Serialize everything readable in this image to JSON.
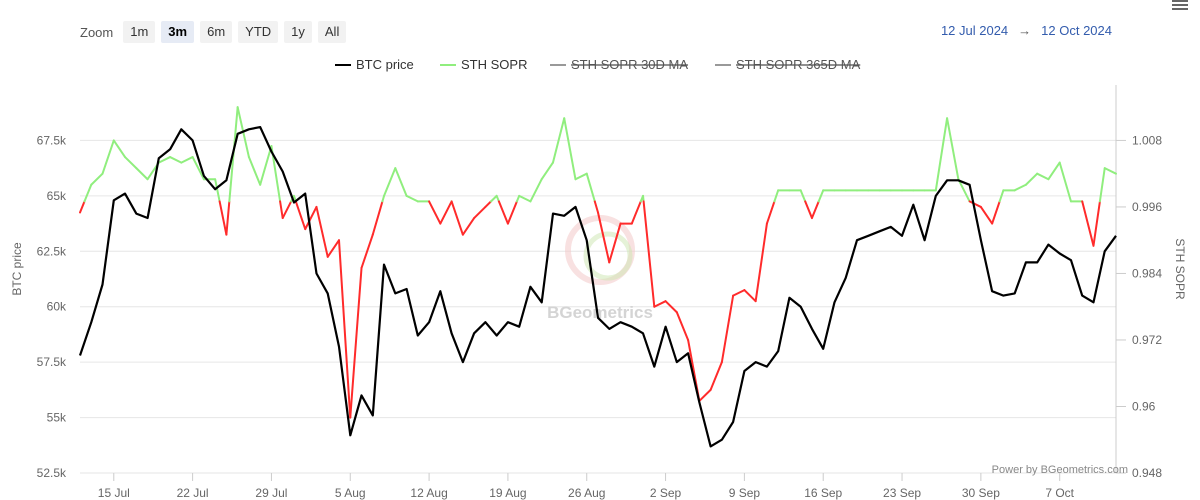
{
  "toolbar": {
    "zoom_label": "Zoom",
    "buttons": [
      "1m",
      "3m",
      "6m",
      "YTD",
      "1y",
      "All"
    ],
    "active_button": "3m"
  },
  "range": {
    "from": "12 Jul 2024",
    "arrow": "→",
    "to": "12 Oct 2024"
  },
  "credit": "Power by BGeometrics.com",
  "watermark": "BGeometrics",
  "colors": {
    "btc": "#000000",
    "sopr_above": "#90ee7e",
    "sopr_below": "#ff2b2b",
    "ma30": "#555555",
    "ma365": "#555555",
    "grid": "#e6e6e6",
    "axis_text": "#666666",
    "range_text": "#335cad"
  },
  "chart_data": {
    "type": "line",
    "title": "",
    "legend_position": "top-center",
    "legend": [
      {
        "name": "BTC price",
        "color": "#000000",
        "hidden": false
      },
      {
        "name": "STH SOPR",
        "color": "#90ee7e",
        "hidden": false
      },
      {
        "name": "STH SOPR 30D MA",
        "color": "#555555",
        "hidden": true
      },
      {
        "name": "STH SOPR 365D MA",
        "color": "#555555",
        "hidden": true
      }
    ],
    "y_left": {
      "label": "BTC price",
      "min": 52500,
      "max": 70000,
      "ticks": [
        52500,
        55000,
        57500,
        60000,
        62500,
        65000,
        67500
      ],
      "tick_labels": [
        "52.5k",
        "55k",
        "57.5k",
        "60k",
        "62.5k",
        "65k",
        "67.5k"
      ]
    },
    "y_right": {
      "label": "STH SOPR",
      "min": 0.948,
      "max": 1.018,
      "threshold": 0.997,
      "ticks": [
        0.948,
        0.96,
        0.972,
        0.984,
        0.996,
        1.008
      ],
      "tick_labels": [
        "0.948",
        "0.96",
        "0.972",
        "0.984",
        "0.996",
        "1.008"
      ]
    },
    "x_tick_labels": [
      "15 Jul",
      "22 Jul",
      "29 Jul",
      "5 Aug",
      "12 Aug",
      "19 Aug",
      "26 Aug",
      "2 Sep",
      "9 Sep",
      "16 Sep",
      "23 Sep",
      "30 Sep",
      "7 Oct"
    ],
    "x_tick_days": [
      3,
      10,
      17,
      24,
      31,
      38,
      45,
      52,
      59,
      66,
      73,
      80,
      87
    ],
    "days": 92,
    "btc_price": [
      57800,
      59300,
      61000,
      64800,
      65100,
      64200,
      64000,
      66700,
      67100,
      68000,
      67500,
      65900,
      65300,
      65700,
      67800,
      68000,
      68100,
      67000,
      66100,
      64700,
      65100,
      61500,
      60600,
      58200,
      54200,
      56000,
      55100,
      61900,
      60600,
      60800,
      58700,
      59300,
      60700,
      58800,
      57500,
      58800,
      59300,
      58700,
      59300,
      59100,
      60900,
      60200,
      64200,
      64100,
      64500,
      63000,
      59500,
      59000,
      59300,
      59100,
      58800,
      57300,
      59100,
      57500,
      57900,
      55700,
      53700,
      54000,
      54800,
      57100,
      57500,
      57300,
      58000,
      60400,
      60000,
      59000,
      58100,
      60200,
      61300,
      63000,
      63200,
      63400,
      63600,
      63200,
      64600,
      63000,
      65000,
      65700,
      65700,
      65500,
      63000,
      60700,
      60500,
      60600,
      62000,
      62000,
      62800,
      62400,
      62100,
      60500,
      60200,
      62500,
      63200
    ],
    "sth_sopr": [
      0.995,
      1.0,
      1.002,
      1.008,
      1.005,
      1.003,
      1.001,
      1.004,
      1.005,
      1.004,
      1.005,
      1.001,
      1.001,
      0.991,
      1.014,
      1.005,
      1.0,
      1.007,
      0.994,
      0.998,
      0.992,
      0.996,
      0.987,
      0.99,
      0.958,
      0.985,
      0.991,
      0.998,
      1.003,
      0.998,
      0.997,
      0.997,
      0.993,
      0.997,
      0.991,
      0.994,
      0.996,
      0.998,
      0.993,
      0.998,
      0.997,
      1.001,
      1.004,
      1.012,
      1.001,
      1.002,
      0.995,
      0.986,
      0.993,
      0.993,
      0.998,
      0.978,
      0.979,
      0.977,
      0.972,
      0.961,
      0.963,
      0.968,
      0.98,
      0.981,
      0.979,
      0.993,
      0.999,
      0.999,
      0.999,
      0.994,
      0.999,
      0.999,
      0.999,
      0.999,
      0.999,
      0.999,
      0.999,
      0.999,
      0.999,
      0.999,
      0.999,
      1.012,
      1.001,
      0.997,
      0.996,
      0.993,
      0.999,
      0.999,
      1.0,
      1.002,
      1.001,
      1.004,
      0.997,
      0.997,
      0.989,
      1.003,
      1.002
    ]
  }
}
